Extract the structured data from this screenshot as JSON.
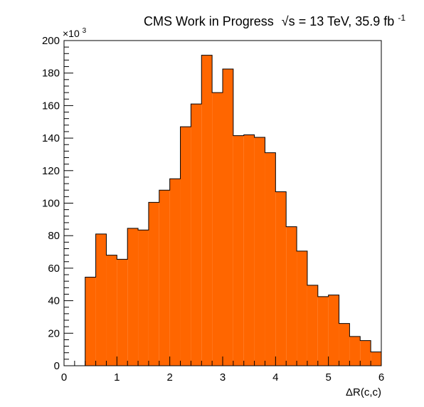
{
  "chart_data": {
    "type": "bar",
    "title_prefix": "CMS Work in Progress",
    "title_sqrt": "√s",
    "title_suffix": " = 13 TeV, 35.9 fb",
    "title_superscript": "-1",
    "xlabel": "ΔR(c,c)",
    "ylabel": "",
    "y_multiplier_base": "×10",
    "y_multiplier_exp": "3",
    "xlim": [
      0,
      6
    ],
    "ylim": [
      0,
      200
    ],
    "x_ticks": [
      0,
      1,
      2,
      3,
      4,
      5,
      6
    ],
    "y_ticks": [
      0,
      20,
      40,
      60,
      80,
      100,
      120,
      140,
      160,
      180,
      200
    ],
    "bin_width": 0.2,
    "bin_edges_start": 0.4,
    "values": [
      54.5,
      81,
      68,
      65.5,
      84.5,
      83.5,
      100.5,
      108,
      115,
      147,
      161,
      191,
      168,
      182.5,
      141.5,
      142,
      140.5,
      131,
      107,
      85.5,
      70.5,
      49.5,
      42.5,
      43.5,
      26,
      18,
      15.5,
      8.5
    ],
    "fill_color": "#ff6600",
    "line_color": "#000000",
    "grid": false
  }
}
